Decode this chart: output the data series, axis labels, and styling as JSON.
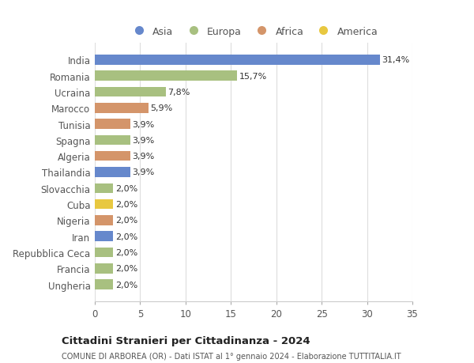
{
  "categories": [
    "Ungheria",
    "Francia",
    "Repubblica Ceca",
    "Iran",
    "Nigeria",
    "Cuba",
    "Slovacchia",
    "Thailandia",
    "Algeria",
    "Spagna",
    "Tunisia",
    "Marocco",
    "Ucraina",
    "Romania",
    "India"
  ],
  "values": [
    2.0,
    2.0,
    2.0,
    2.0,
    2.0,
    2.0,
    2.0,
    3.9,
    3.9,
    3.9,
    3.9,
    5.9,
    7.8,
    15.7,
    31.4
  ],
  "labels": [
    "2,0%",
    "2,0%",
    "2,0%",
    "2,0%",
    "2,0%",
    "2,0%",
    "2,0%",
    "3,9%",
    "3,9%",
    "3,9%",
    "3,9%",
    "5,9%",
    "7,8%",
    "15,7%",
    "31,4%"
  ],
  "colors": [
    "#a8c080",
    "#a8c080",
    "#a8c080",
    "#6688cc",
    "#d4956a",
    "#e8c840",
    "#a8c080",
    "#6688cc",
    "#d4956a",
    "#a8c080",
    "#d4956a",
    "#d4956a",
    "#a8c080",
    "#a8c080",
    "#6688cc"
  ],
  "legend_labels": [
    "Asia",
    "Europa",
    "Africa",
    "America"
  ],
  "legend_colors": [
    "#6688cc",
    "#a8c080",
    "#d4956a",
    "#e8c840"
  ],
  "title": "Cittadini Stranieri per Cittadinanza - 2024",
  "subtitle": "COMUNE DI ARBOREA (OR) - Dati ISTAT al 1° gennaio 2024 - Elaborazione TUTTITALIA.IT",
  "xlim": [
    0,
    35
  ],
  "xticks": [
    0,
    5,
    10,
    15,
    20,
    25,
    30,
    35
  ],
  "bg_color": "#ffffff",
  "grid_color": "#dddddd",
  "bar_height": 0.62
}
